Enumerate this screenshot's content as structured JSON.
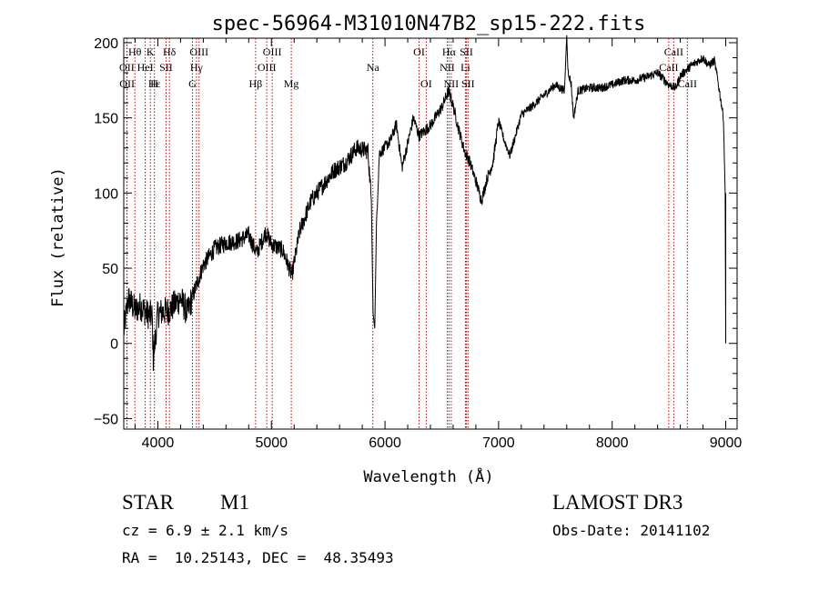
{
  "chart_data": {
    "type": "line",
    "title": "spec-56964-M31010N47B2_sp15-222.fits",
    "xlabel": "Wavelength (Å)",
    "ylabel": "Flux (relative)",
    "xlim": [
      3700,
      9100
    ],
    "ylim": [
      -57,
      203
    ],
    "x_ticks": [
      4000,
      5000,
      6000,
      7000,
      8000,
      9000
    ],
    "y_ticks": [
      -50,
      0,
      50,
      100,
      150,
      200
    ],
    "x_tick_labels": [
      "4000",
      "5000",
      "6000",
      "7000",
      "8000",
      "9000"
    ],
    "y_tick_labels": [
      "−50",
      "0",
      "50",
      "100",
      "150",
      "200"
    ],
    "line_color": "#000000",
    "marker_color": "#c00000",
    "spectrum_anchors": [
      [
        3700,
        8
      ],
      [
        3740,
        30
      ],
      [
        3800,
        22
      ],
      [
        3850,
        25
      ],
      [
        3900,
        20
      ],
      [
        3950,
        18
      ],
      [
        3960,
        -10
      ],
      [
        4000,
        20
      ],
      [
        4100,
        22
      ],
      [
        4200,
        30
      ],
      [
        4260,
        20
      ],
      [
        4300,
        30
      ],
      [
        4400,
        52
      ],
      [
        4500,
        63
      ],
      [
        4600,
        67
      ],
      [
        4700,
        68
      ],
      [
        4800,
        72
      ],
      [
        4870,
        60
      ],
      [
        4950,
        74
      ],
      [
        5000,
        66
      ],
      [
        5100,
        62
      ],
      [
        5180,
        45
      ],
      [
        5250,
        75
      ],
      [
        5350,
        95
      ],
      [
        5450,
        105
      ],
      [
        5550,
        115
      ],
      [
        5650,
        120
      ],
      [
        5750,
        130
      ],
      [
        5850,
        128
      ],
      [
        5880,
        95
      ],
      [
        5895,
        20
      ],
      [
        5910,
        10
      ],
      [
        5925,
        80
      ],
      [
        5950,
        126
      ],
      [
        6050,
        135
      ],
      [
        6100,
        146
      ],
      [
        6150,
        117
      ],
      [
        6200,
        133
      ],
      [
        6250,
        150
      ],
      [
        6300,
        138
      ],
      [
        6400,
        145
      ],
      [
        6500,
        157
      ],
      [
        6560,
        168
      ],
      [
        6600,
        158
      ],
      [
        6650,
        142
      ],
      [
        6700,
        128
      ],
      [
        6750,
        120
      ],
      [
        6800,
        108
      ],
      [
        6850,
        95
      ],
      [
        6900,
        110
      ],
      [
        6950,
        120
      ],
      [
        7000,
        148
      ],
      [
        7050,
        135
      ],
      [
        7100,
        125
      ],
      [
        7200,
        152
      ],
      [
        7300,
        158
      ],
      [
        7400,
        165
      ],
      [
        7500,
        172
      ],
      [
        7580,
        168
      ],
      [
        7600,
        205
      ],
      [
        7610,
        182
      ],
      [
        7640,
        172
      ],
      [
        7660,
        150
      ],
      [
        7700,
        168
      ],
      [
        7800,
        170
      ],
      [
        7900,
        170
      ],
      [
        8000,
        172
      ],
      [
        8100,
        175
      ],
      [
        8200,
        175
      ],
      [
        8300,
        177
      ],
      [
        8400,
        180
      ],
      [
        8500,
        172
      ],
      [
        8560,
        170
      ],
      [
        8600,
        178
      ],
      [
        8700,
        185
      ],
      [
        8800,
        190
      ],
      [
        8850,
        185
      ],
      [
        8900,
        188
      ],
      [
        8930,
        175
      ],
      [
        8960,
        160
      ],
      [
        8980,
        150
      ],
      [
        8995,
        100
      ],
      [
        9000,
        0
      ]
    ],
    "lines": [
      {
        "label": "Hθ",
        "x": 3798,
        "row": 0
      },
      {
        "label": "K",
        "x": 3934,
        "row": 0
      },
      {
        "label": "Hδ",
        "x": 4102,
        "row": 0
      },
      {
        "label": "OIII",
        "x": 4363,
        "row": 0
      },
      {
        "label": "OIII",
        "x": 5007,
        "row": 0
      },
      {
        "label": "OI",
        "x": 6300,
        "row": 0
      },
      {
        "label": "Hα",
        "x": 6563,
        "row": 0
      },
      {
        "label": "SII",
        "x": 6717,
        "row": 0
      },
      {
        "label": "CaII",
        "x": 8542,
        "row": 0
      },
      {
        "label": "OII",
        "x": 3727,
        "row": 1
      },
      {
        "label": "HeI",
        "x": 3889,
        "row": 1
      },
      {
        "label": "SII",
        "x": 4072,
        "row": 1
      },
      {
        "label": "Hγ",
        "x": 4340,
        "row": 1
      },
      {
        "label": "OIII",
        "x": 4959,
        "row": 1
      },
      {
        "label": "Na",
        "x": 5893,
        "row": 1
      },
      {
        "label": "NII",
        "x": 6548,
        "row": 1
      },
      {
        "label": "Li",
        "x": 6708,
        "row": 1
      },
      {
        "label": "CaII",
        "x": 8498,
        "row": 1
      },
      {
        "label": "OII",
        "x": 3729,
        "row": 2
      },
      {
        "label": "Hε",
        "x": 3970,
        "row": 2
      },
      {
        "label": "H",
        "x": 3969,
        "row": 2
      },
      {
        "label": "G",
        "x": 4305,
        "row": 2
      },
      {
        "label": "Hβ",
        "x": 4861,
        "row": 2
      },
      {
        "label": "Mg",
        "x": 5175,
        "row": 2
      },
      {
        "label": "OI",
        "x": 6363,
        "row": 2
      },
      {
        "label": "NII",
        "x": 6583,
        "row": 2
      },
      {
        "label": "SII",
        "x": 6731,
        "row": 2
      },
      {
        "label": "CaII",
        "x": 8662,
        "row": 2
      }
    ]
  },
  "info": {
    "class_label": "STAR",
    "subclass_label": "M1",
    "survey": "LAMOST DR3",
    "cz": "cz = 6.9 ± 2.1 km/s",
    "obs_date": "Obs-Date: 20141102",
    "coords": "RA =  10.25143, DEC =  48.35493"
  }
}
